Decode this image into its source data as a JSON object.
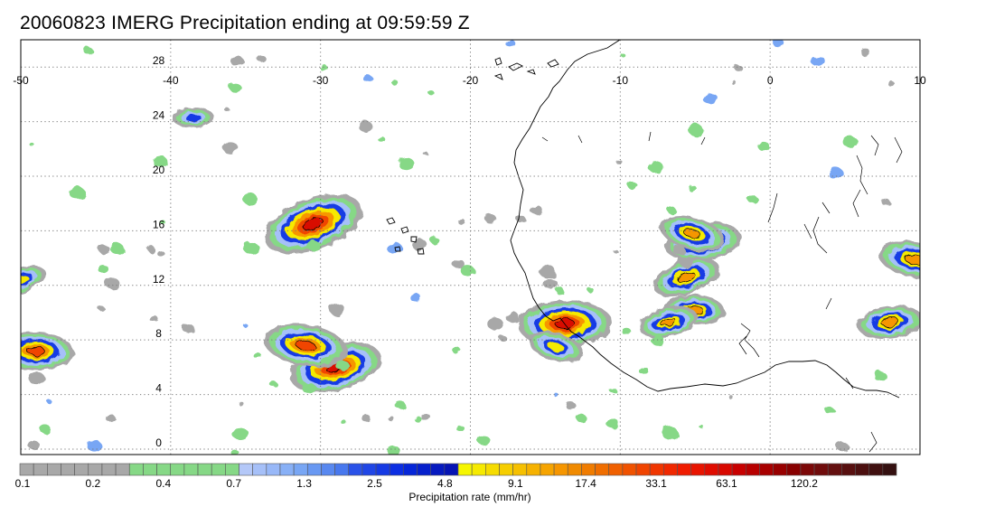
{
  "title": "20060823 IMERG Precipitation ending at 09:59:59 Z",
  "map": {
    "lon_range": [
      -50,
      10
    ],
    "lat_range": [
      -0.4,
      30
    ],
    "lon_ticks": [
      -50,
      -40,
      -30,
      -20,
      -10,
      0,
      10
    ],
    "lon_tick_labels": [
      "-50",
      "-40",
      "-30",
      "-20",
      "-10",
      "0",
      "10"
    ],
    "lat_ticks": [
      0,
      4,
      8,
      12,
      16,
      20,
      24,
      28
    ],
    "lat_tick_labels": [
      "0",
      "4",
      "8",
      "12",
      "16",
      "20",
      "24",
      "28"
    ],
    "grid": "dotted",
    "coastline_color": "#000000"
  },
  "colorbar": {
    "label": "Precipitation rate (mm/hr)",
    "tick_labels": [
      "0.1",
      "0.2",
      "0.4",
      "0.7",
      "1.3",
      "2.5",
      "4.8",
      "9.1",
      "17.4",
      "33.1",
      "63.1",
      "120.2"
    ],
    "colors": [
      "#a8a8a8",
      "#a8a8a8",
      "#a8a8a8",
      "#a8a8a8",
      "#a8a8a8",
      "#a8a8a8",
      "#a8a8a8",
      "#a8a8a8",
      "#86d886",
      "#86d886",
      "#86d886",
      "#86d886",
      "#86d886",
      "#86d886",
      "#86d886",
      "#86d886",
      "#b4c8f8",
      "#a6c0f8",
      "#98b8f8",
      "#88b0f6",
      "#78a6f4",
      "#6898f2",
      "#5888f0",
      "#4878ee",
      "#2a52e8",
      "#2046e6",
      "#163ae4",
      "#0c2ee2",
      "#0626d8",
      "#0620cc",
      "#061ac0",
      "#0614b4",
      "#f6f600",
      "#f6ea00",
      "#f6dc00",
      "#f6ce00",
      "#f6c000",
      "#f6b200",
      "#f6a400",
      "#f69600",
      "#f08a00",
      "#f07c00",
      "#f06e00",
      "#f06000",
      "#f05200",
      "#f04400",
      "#f03600",
      "#f02800",
      "#f01c00",
      "#e81400",
      "#e00c00",
      "#d80800",
      "#c80000",
      "#b80000",
      "#a80000",
      "#980000",
      "#880000",
      "#7c0808",
      "#700c0c",
      "#641010",
      "#581010",
      "#4c1010",
      "#401010",
      "#341010"
    ]
  },
  "chart_data": {
    "type": "heatmap",
    "title": "20060823 IMERG Precipitation ending at 09:59:59 Z",
    "xlabel": "",
    "ylabel": "",
    "xlim": [
      -50,
      10
    ],
    "ylim": [
      -0.4,
      30
    ],
    "color_scale_label": "Precipitation rate (mm/hr)",
    "color_scale_ticks": [
      0.1,
      0.2,
      0.4,
      0.7,
      1.3,
      2.5,
      4.8,
      9.1,
      17.4,
      33.1,
      63.1,
      120.2
    ],
    "precipitation_cells": [
      {
        "lon": -30.5,
        "lat": 16.5,
        "peak_mm_hr": 25
      },
      {
        "lon": -49.0,
        "lat": 7.2,
        "peak_mm_hr": 12
      },
      {
        "lon": -29.0,
        "lat": 6.0,
        "peak_mm_hr": 20
      },
      {
        "lon": -31.0,
        "lat": 7.6,
        "peak_mm_hr": 15
      },
      {
        "lon": -4.5,
        "lat": 15.2,
        "peak_mm_hr": 12
      },
      {
        "lon": -5.2,
        "lat": 15.8,
        "peak_mm_hr": 8
      },
      {
        "lon": -13.7,
        "lat": 9.2,
        "peak_mm_hr": 20
      },
      {
        "lon": -5.6,
        "lat": 12.6,
        "peak_mm_hr": 9
      },
      {
        "lon": -5.0,
        "lat": 10.2,
        "peak_mm_hr": 6
      },
      {
        "lon": -6.8,
        "lat": 9.3,
        "peak_mm_hr": 6
      },
      {
        "lon": 9.6,
        "lat": 13.9,
        "peak_mm_hr": 10
      },
      {
        "lon": 8.0,
        "lat": 9.3,
        "peak_mm_hr": 8
      },
      {
        "lon": -14.3,
        "lat": 7.5,
        "peak_mm_hr": 5
      },
      {
        "lon": -38.5,
        "lat": 24.3,
        "peak_mm_hr": 2
      },
      {
        "lon": -50.0,
        "lat": 12.4,
        "peak_mm_hr": 4
      }
    ]
  }
}
